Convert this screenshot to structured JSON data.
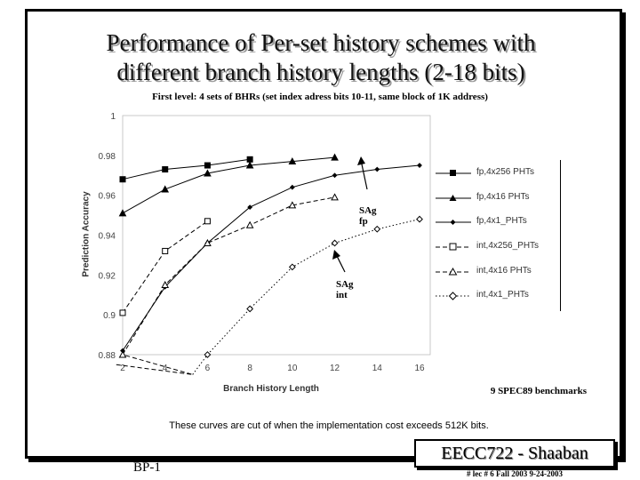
{
  "slide": {
    "title_line1": "Performance of Per-set history schemes with",
    "title_line2": "different branch history lengths (2-18 bits)",
    "subtitle": "First level:  4 sets of BHRs   (set index adress bits 10-11,  same block of 1K address)",
    "benchmarks": "9 SPEC89 benchmarks",
    "note": "These curves are cut of when the implementation cost exceeds 512K bits.",
    "annotation_fp_line1": "SAg",
    "annotation_fp_line2": "fp",
    "annotation_int_line1": "SAg",
    "annotation_int_line2": "int",
    "footer_left": "BP-1",
    "brand": "EECC722 - Shaaban",
    "footer_info": "#  lec # 6   Fall 2003   9-24-2003"
  },
  "chart_data": {
    "type": "line",
    "xlabel": "Branch History Length",
    "ylabel": "Prediction Accuracy",
    "xlim": [
      2,
      16
    ],
    "ylim": [
      0.88,
      1
    ],
    "xticks": [
      2,
      4,
      6,
      8,
      10,
      12,
      14,
      16
    ],
    "ytick_labels": [
      "1",
      "0.98",
      "0.96",
      "0.94",
      "0.92",
      "0.9",
      "0.88"
    ],
    "grid": false,
    "legend_position": "right",
    "series": [
      {
        "name": "fp,4x256  PHTs",
        "marker": "filled-square",
        "dash": "solid",
        "x": [
          2,
          4,
          6,
          8
        ],
        "y": [
          0.968,
          0.973,
          0.975,
          0.978
        ]
      },
      {
        "name": "fp,4x16  PHTs",
        "marker": "filled-triangle",
        "dash": "solid",
        "x": [
          2,
          4,
          6,
          8,
          10,
          12
        ],
        "y": [
          0.951,
          0.963,
          0.971,
          0.975,
          0.977,
          0.979
        ]
      },
      {
        "name": "fp,4x1_PHTs",
        "marker": "filled-diamond",
        "dash": "solid",
        "x": [
          2,
          4,
          6,
          8,
          10,
          12,
          14,
          16
        ],
        "y": [
          0.882,
          0.914,
          0.936,
          0.954,
          0.964,
          0.97,
          0.973,
          0.975
        ]
      },
      {
        "name": "int,4x256_PHTs",
        "marker": "open-square",
        "dash": "dashed",
        "x": [
          2,
          4,
          6
        ],
        "y": [
          0.901,
          0.932,
          0.947
        ]
      },
      {
        "name": "int,4x16  PHTs",
        "marker": "open-triangle",
        "dash": "dashed",
        "x": [
          2,
          4,
          6,
          8,
          10,
          12
        ],
        "y": [
          0.88,
          0.915,
          0.936,
          0.945,
          0.955,
          0.959
        ]
      },
      {
        "name": "int,4x1_PHTs",
        "marker": "open-diamond",
        "dash": "dotted",
        "x": [
          6,
          8,
          10,
          12,
          14,
          16
        ],
        "y": [
          0.88,
          0.903,
          0.924,
          0.936,
          0.943,
          0.948
        ]
      }
    ]
  }
}
